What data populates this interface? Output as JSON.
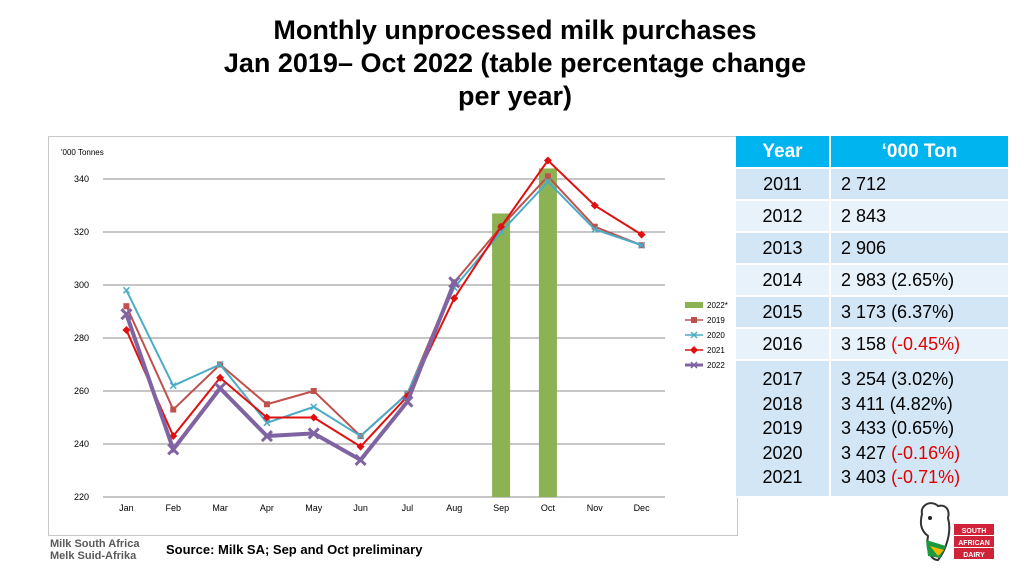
{
  "title": {
    "line1": "Monthly unprocessed milk purchases",
    "line2": "Jan 2019– Oct 2022 (table percentage change",
    "line3": "per year)"
  },
  "chart_data": {
    "type": "line",
    "ylabel": "'000 Tonnes",
    "ylim": [
      220,
      340
    ],
    "yticks": [
      220,
      240,
      260,
      280,
      300,
      320,
      340
    ],
    "categories": [
      "Jan",
      "Feb",
      "Mar",
      "Apr",
      "May",
      "Jun",
      "Jul",
      "Aug",
      "Sep",
      "Oct",
      "Nov",
      "Dec"
    ],
    "bar_series": {
      "name": "2022*",
      "color": "#8db254",
      "values": [
        null,
        null,
        null,
        null,
        null,
        null,
        null,
        null,
        327,
        344,
        null,
        null
      ]
    },
    "series": [
      {
        "name": "2019",
        "color": "#c0504d",
        "marker": "square",
        "values": [
          292,
          253,
          270,
          255,
          260,
          243,
          259,
          301,
          322,
          341,
          322,
          315
        ]
      },
      {
        "name": "2020",
        "color": "#4bacc6",
        "marker": "x",
        "values": [
          298,
          262,
          270,
          248,
          254,
          243,
          259,
          299,
          320,
          339,
          321,
          315
        ]
      },
      {
        "name": "2021",
        "color": "#e01010",
        "marker": "diamond",
        "values": [
          283,
          243,
          265,
          250,
          250,
          239,
          258,
          295,
          322,
          347,
          330,
          319
        ]
      },
      {
        "name": "2022",
        "color": "#8064a2",
        "marker": "x",
        "values": [
          289,
          238,
          261,
          243,
          244,
          234,
          256,
          301,
          null,
          null,
          null,
          null
        ]
      }
    ],
    "legend_order": [
      "2022*",
      "2019",
      "2020",
      "2021",
      "2022"
    ],
    "legend_position": "right"
  },
  "table": {
    "headers": [
      "Year",
      "‘000 Ton"
    ],
    "rows": [
      {
        "year": "2011",
        "value": "2 712",
        "pct": ""
      },
      {
        "year": "2012",
        "value": "2 843",
        "pct": ""
      },
      {
        "year": "2013",
        "value": "2 906",
        "pct": ""
      },
      {
        "year": "2014",
        "value": "2 983",
        "pct": "(2.65%)"
      },
      {
        "year": "2015",
        "value": "3 173",
        "pct": "(6.37%)"
      },
      {
        "year": "2016",
        "value": "3 158",
        "pct": "(-0.45%)"
      }
    ],
    "group_rows": [
      {
        "year": "2017",
        "value": "3 254",
        "pct": "(3.02%)"
      },
      {
        "year": "2018",
        "value": "3 411",
        "pct": "(4.82%)"
      },
      {
        "year": "2019",
        "value": "3 433",
        "pct": "(0.65%)"
      },
      {
        "year": "2020",
        "value": "3 427",
        "pct": "(-0.16%)"
      },
      {
        "year": "2021",
        "value": "3 403",
        "pct": "(-0.71%)"
      }
    ]
  },
  "source": "Source:  Milk SA; Sep and Oct preliminary",
  "org_logo": {
    "line1": "Milk South Africa",
    "line2": "Melk Suid-Afrika"
  },
  "sad_logo": {
    "line1": "SOUTH",
    "line2": "AFRICAN",
    "line3": "DAIRY"
  }
}
